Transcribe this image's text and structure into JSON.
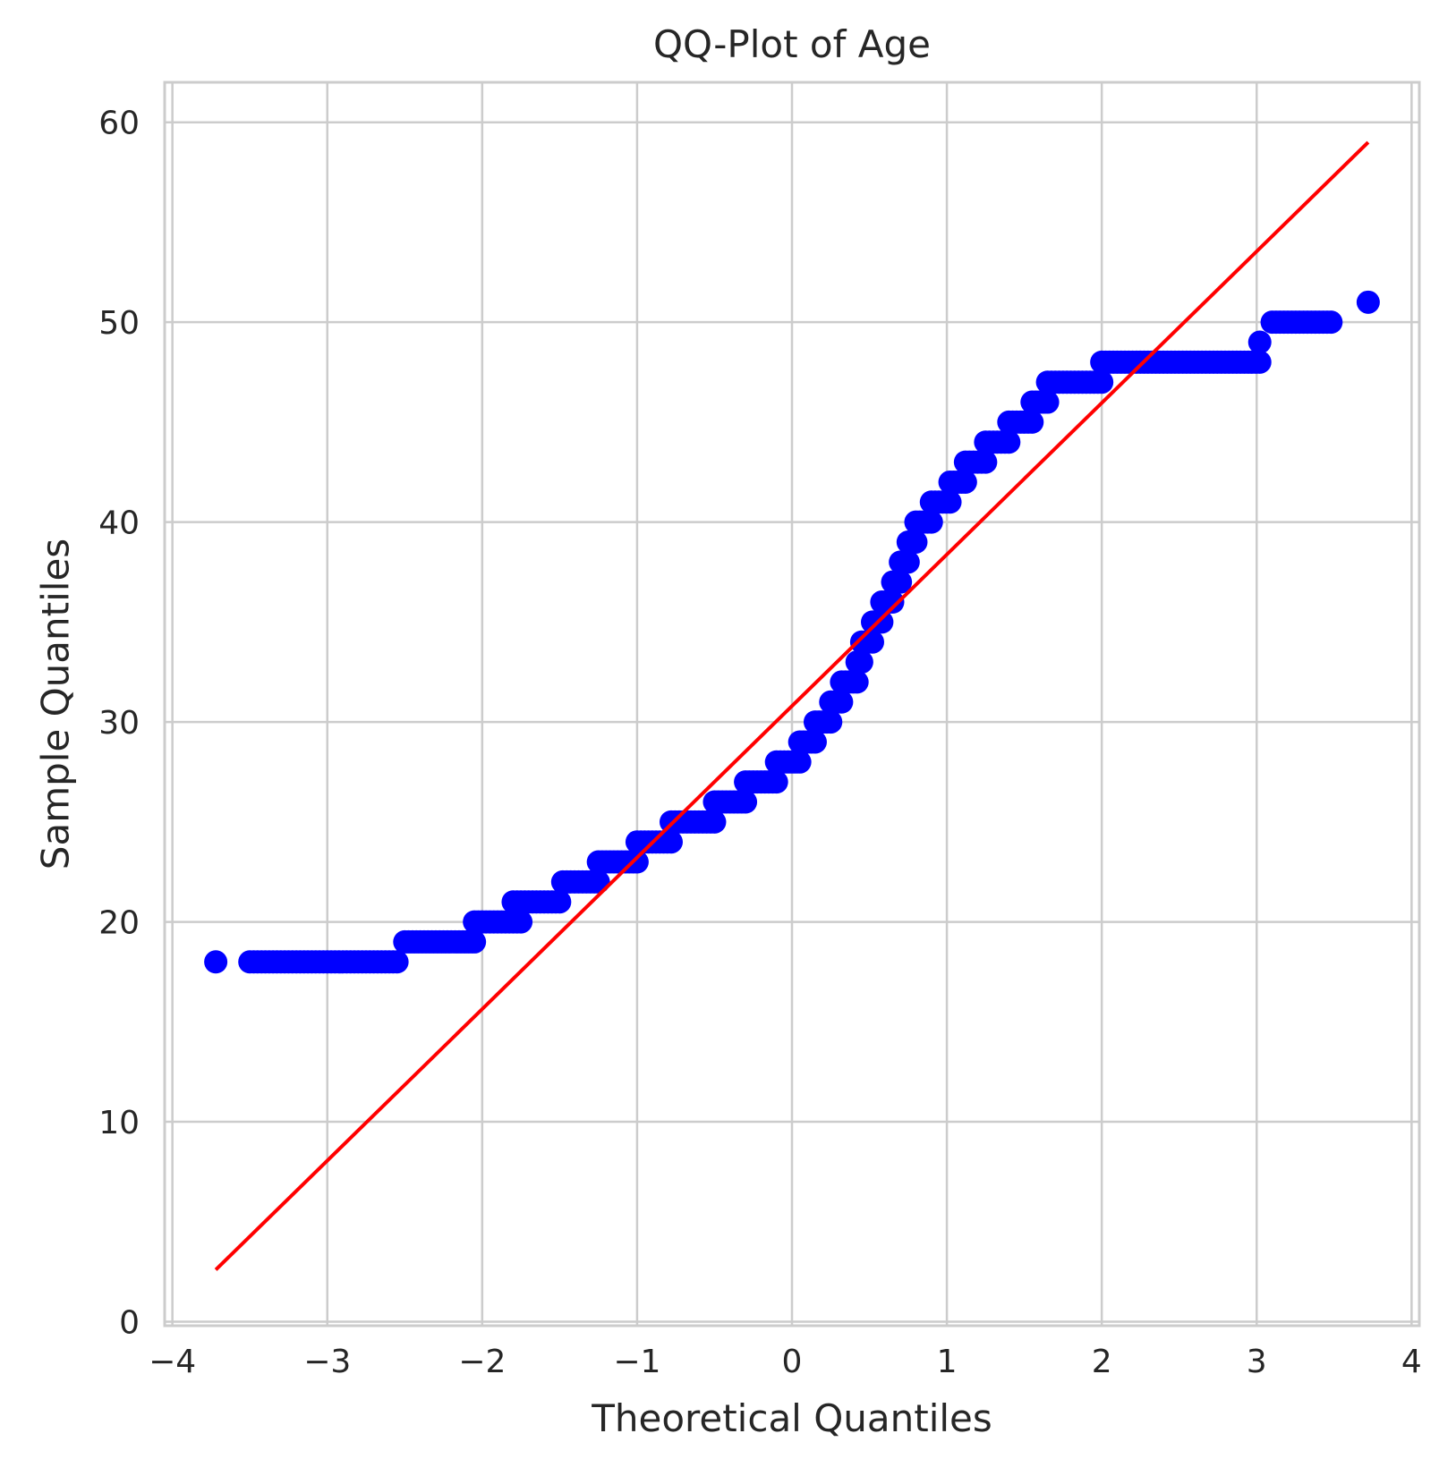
{
  "chart_data": {
    "type": "scatter",
    "title": "QQ-Plot of Age",
    "xlabel": "Theoretical Quantiles",
    "ylabel": "Sample Quantiles",
    "xlim": [
      -4.05,
      4.05
    ],
    "ylim": [
      -0.2,
      62
    ],
    "xticks": [
      -4,
      -3,
      -2,
      -1,
      0,
      1,
      2,
      3,
      4
    ],
    "xtick_labels": [
      "−4",
      "−3",
      "−2",
      "−1",
      "0",
      "1",
      "2",
      "3",
      "4"
    ],
    "yticks": [
      0,
      10,
      20,
      30,
      40,
      50,
      60
    ],
    "ytick_labels": [
      "0",
      "10",
      "20",
      "30",
      "40",
      "50",
      "60"
    ],
    "grid": true,
    "colors": {
      "points": "#0000ff",
      "line": "#ff0000",
      "grid": "#cccccc",
      "text": "#262626"
    },
    "series": [
      {
        "kind": "points",
        "steps": [
          [
            -3.72,
            -3.72,
            18
          ],
          [
            -3.5,
            -2.55,
            18
          ],
          [
            -2.5,
            -2.05,
            19
          ],
          [
            -2.05,
            -1.75,
            20
          ],
          [
            -1.8,
            -1.5,
            21
          ],
          [
            -1.48,
            -1.25,
            22
          ],
          [
            -1.25,
            -1.0,
            23
          ],
          [
            -1.0,
            -0.78,
            24
          ],
          [
            -0.78,
            -0.5,
            25
          ],
          [
            -0.5,
            -0.3,
            26
          ],
          [
            -0.3,
            -0.1,
            27
          ],
          [
            -0.1,
            0.05,
            28
          ],
          [
            0.05,
            0.15,
            29
          ],
          [
            0.15,
            0.25,
            30
          ],
          [
            0.25,
            0.32,
            31
          ],
          [
            0.32,
            0.42,
            32
          ],
          [
            0.42,
            0.45,
            33
          ],
          [
            0.45,
            0.52,
            34
          ],
          [
            0.52,
            0.58,
            35
          ],
          [
            0.58,
            0.65,
            36
          ],
          [
            0.65,
            0.7,
            37
          ],
          [
            0.7,
            0.75,
            38
          ],
          [
            0.75,
            0.8,
            39
          ],
          [
            0.8,
            0.9,
            40
          ],
          [
            0.9,
            1.02,
            41
          ],
          [
            1.02,
            1.12,
            42
          ],
          [
            1.12,
            1.25,
            43
          ],
          [
            1.25,
            1.4,
            44
          ],
          [
            1.4,
            1.55,
            45
          ],
          [
            1.55,
            1.65,
            46
          ],
          [
            1.65,
            2.0,
            47
          ],
          [
            2.0,
            3.02,
            48
          ],
          [
            3.02,
            3.02,
            49
          ],
          [
            3.1,
            3.48,
            50
          ],
          [
            3.72,
            3.72,
            51
          ]
        ]
      },
      {
        "kind": "line",
        "x": [
          -3.72,
          3.72
        ],
        "y": [
          2.6,
          59.0
        ]
      }
    ]
  }
}
